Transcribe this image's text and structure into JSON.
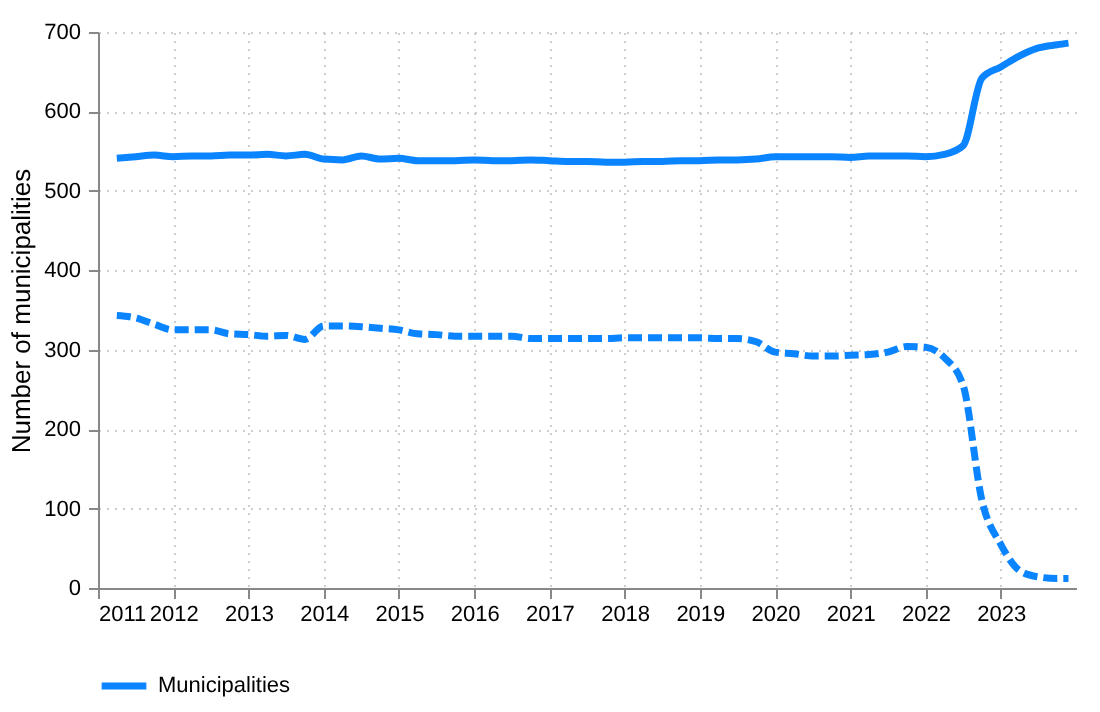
{
  "chart_data": {
    "type": "line",
    "ylabel": "Number of municipalities",
    "xlim": [
      2011,
      2024
    ],
    "xticks": [
      2011,
      2012,
      2013,
      2014,
      2015,
      2016,
      2017,
      2018,
      2019,
      2020,
      2021,
      2022,
      2023
    ],
    "ylim": [
      0,
      700
    ],
    "yticks": [
      0,
      100,
      200,
      300,
      400,
      500,
      600,
      700
    ],
    "grid": true,
    "legend": "bottom",
    "marker": "none",
    "x": [
      2011.25,
      2011.5,
      2011.75,
      2012,
      2012.25,
      2012.5,
      2012.75,
      2013,
      2013.25,
      2013.5,
      2013.75,
      2014,
      2014.25,
      2014.5,
      2014.75,
      2015,
      2015.25,
      2015.5,
      2015.75,
      2016,
      2016.25,
      2016.5,
      2016.75,
      2017,
      2017.25,
      2017.5,
      2017.75,
      2018,
      2018.25,
      2018.5,
      2018.75,
      2019,
      2019.25,
      2019.5,
      2019.75,
      2020,
      2020.25,
      2020.5,
      2020.75,
      2021,
      2021.25,
      2021.5,
      2021.75,
      2022,
      2022.25,
      2022.5,
      2022.75,
      2023,
      2023.25,
      2023.5,
      2023.75,
      2023.9
    ],
    "series": [
      {
        "name": "Municipalities",
        "color": "#0a84ff",
        "line_style": "solid",
        "values": [
          541,
          543,
          545,
          543,
          544,
          544,
          545,
          545,
          546,
          544,
          546,
          540,
          539,
          544,
          540,
          541,
          538,
          538,
          538,
          539,
          538,
          538,
          539,
          538,
          537,
          537,
          536,
          536,
          537,
          537,
          538,
          538,
          539,
          539,
          540,
          543,
          543,
          543,
          543,
          542,
          544,
          544,
          544,
          543,
          546,
          557,
          642,
          656,
          670,
          680,
          684,
          686
        ]
      },
      {
        "color": "#0a84ff",
        "line_style": "dashed",
        "values": [
          343,
          340,
          332,
          325,
          325,
          325,
          320,
          319,
          317,
          318,
          313,
          330,
          330,
          329,
          327,
          325,
          320,
          319,
          317,
          317,
          317,
          317,
          314,
          314,
          314,
          314,
          314,
          315,
          315,
          315,
          315,
          315,
          314,
          314,
          310,
          297,
          295,
          292,
          292,
          293,
          294,
          297,
          304,
          303,
          290,
          255,
          110,
          55,
          22,
          14,
          12,
          12
        ]
      }
    ]
  }
}
